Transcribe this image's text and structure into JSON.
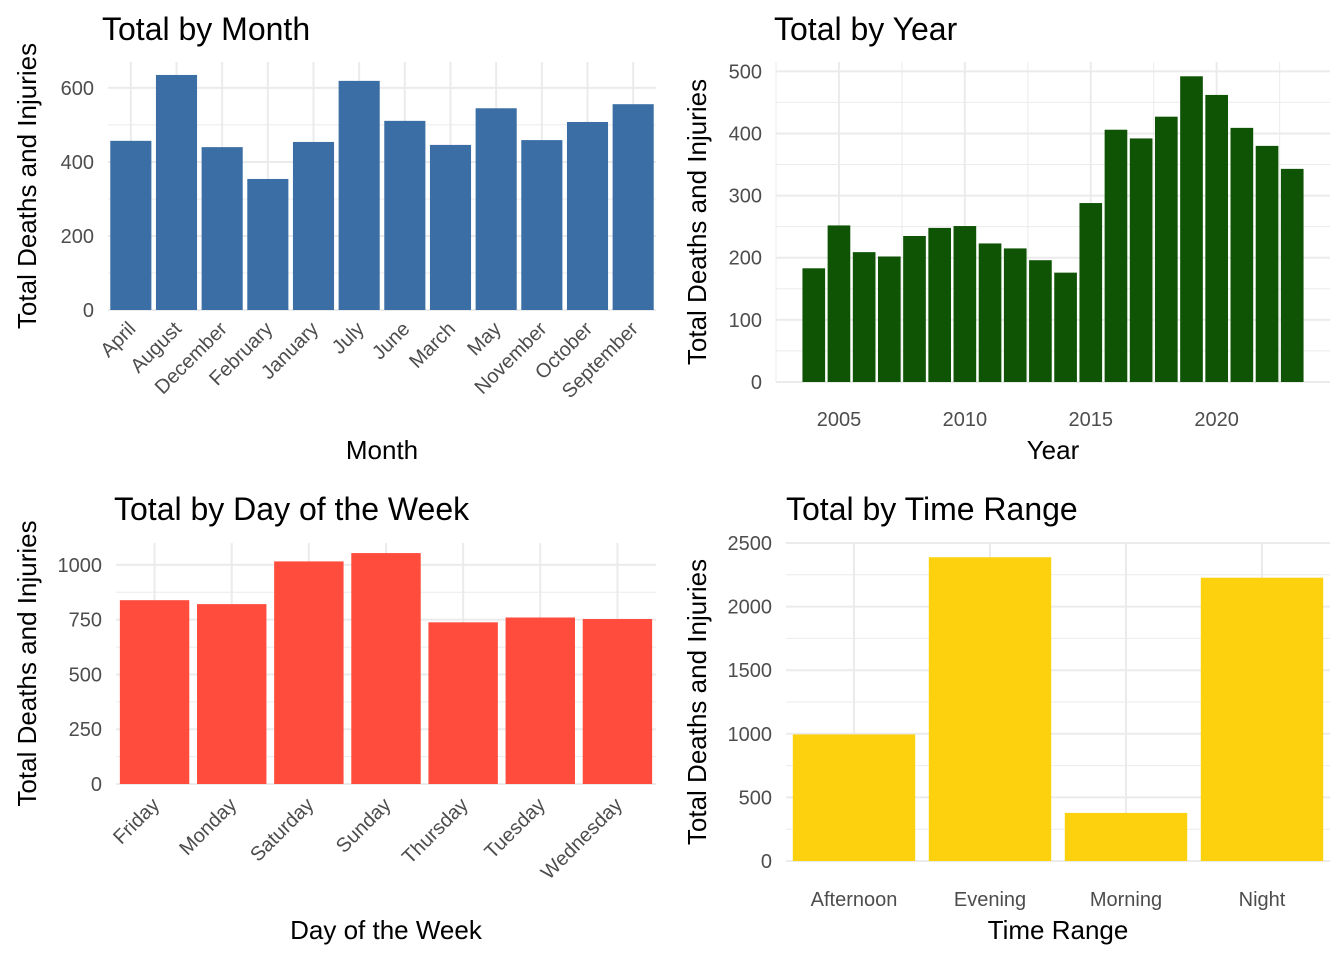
{
  "chart_data": [
    {
      "type": "bar",
      "title": "Total by Month",
      "xlabel": "Month",
      "ylabel": "Total Deaths and Injuries",
      "color": "#3A6EA5",
      "categories": [
        "April",
        "August",
        "December",
        "February",
        "January",
        "July",
        "June",
        "March",
        "May",
        "November",
        "October",
        "September"
      ],
      "values": [
        457,
        635,
        440,
        354,
        454,
        619,
        511,
        446,
        545,
        459,
        508,
        556
      ],
      "ylim": [
        0,
        670
      ],
      "yticks": [
        0,
        200,
        400,
        600
      ],
      "ytick_labels": [
        "0",
        "200",
        "400",
        "600"
      ],
      "grid": true
    },
    {
      "type": "bar",
      "title": "Total by Year",
      "xlabel": "Year",
      "ylabel": "Total Deaths and Injuries",
      "color": "#0E5404",
      "x": [
        2004,
        2005,
        2006,
        2007,
        2008,
        2009,
        2010,
        2011,
        2012,
        2013,
        2014,
        2015,
        2016,
        2017,
        2018,
        2019,
        2020,
        2021,
        2022,
        2023
      ],
      "values": [
        183,
        252,
        209,
        202,
        235,
        248,
        251,
        223,
        215,
        196,
        176,
        288,
        406,
        392,
        427,
        492,
        462,
        409,
        380,
        343
      ],
      "xlim": [
        2002.5,
        2024.5
      ],
      "xticks": [
        2005,
        2010,
        2015,
        2020
      ],
      "xtick_labels": [
        "2005",
        "2010",
        "2015",
        "2020"
      ],
      "ylim": [
        0,
        515
      ],
      "yticks": [
        0,
        100,
        200,
        300,
        400,
        500
      ],
      "ytick_labels": [
        "0",
        "100",
        "200",
        "300",
        "400",
        "500"
      ],
      "grid": true
    },
    {
      "type": "bar",
      "title": "Total by Day of the Week",
      "xlabel": "Day of the Week",
      "ylabel": "Total Deaths and Injuries",
      "color": "#FF4C3C",
      "categories": [
        "Friday",
        "Monday",
        "Saturday",
        "Sunday",
        "Thursday",
        "Tuesday",
        "Wednesday"
      ],
      "values": [
        839,
        821,
        1016,
        1054,
        738,
        760,
        753
      ],
      "ylim": [
        0,
        1100
      ],
      "yticks": [
        0,
        250,
        500,
        750,
        1000
      ],
      "ytick_labels": [
        "0",
        "250",
        "500",
        "750",
        "1000"
      ],
      "grid": true
    },
    {
      "type": "bar",
      "title": "Total by Time Range",
      "xlabel": "Time Range",
      "ylabel": "Total Deaths and Injuries",
      "color": "#FDD10D",
      "categories": [
        "Afternoon",
        "Evening",
        "Morning",
        "Night"
      ],
      "values": [
        995,
        2388,
        378,
        2227
      ],
      "ylim": [
        0,
        2500
      ],
      "yticks": [
        0,
        500,
        1000,
        1500,
        2000,
        2500
      ],
      "ytick_labels": [
        "0",
        "500",
        "1000",
        "1500",
        "2000",
        "2500"
      ],
      "grid": true
    }
  ]
}
